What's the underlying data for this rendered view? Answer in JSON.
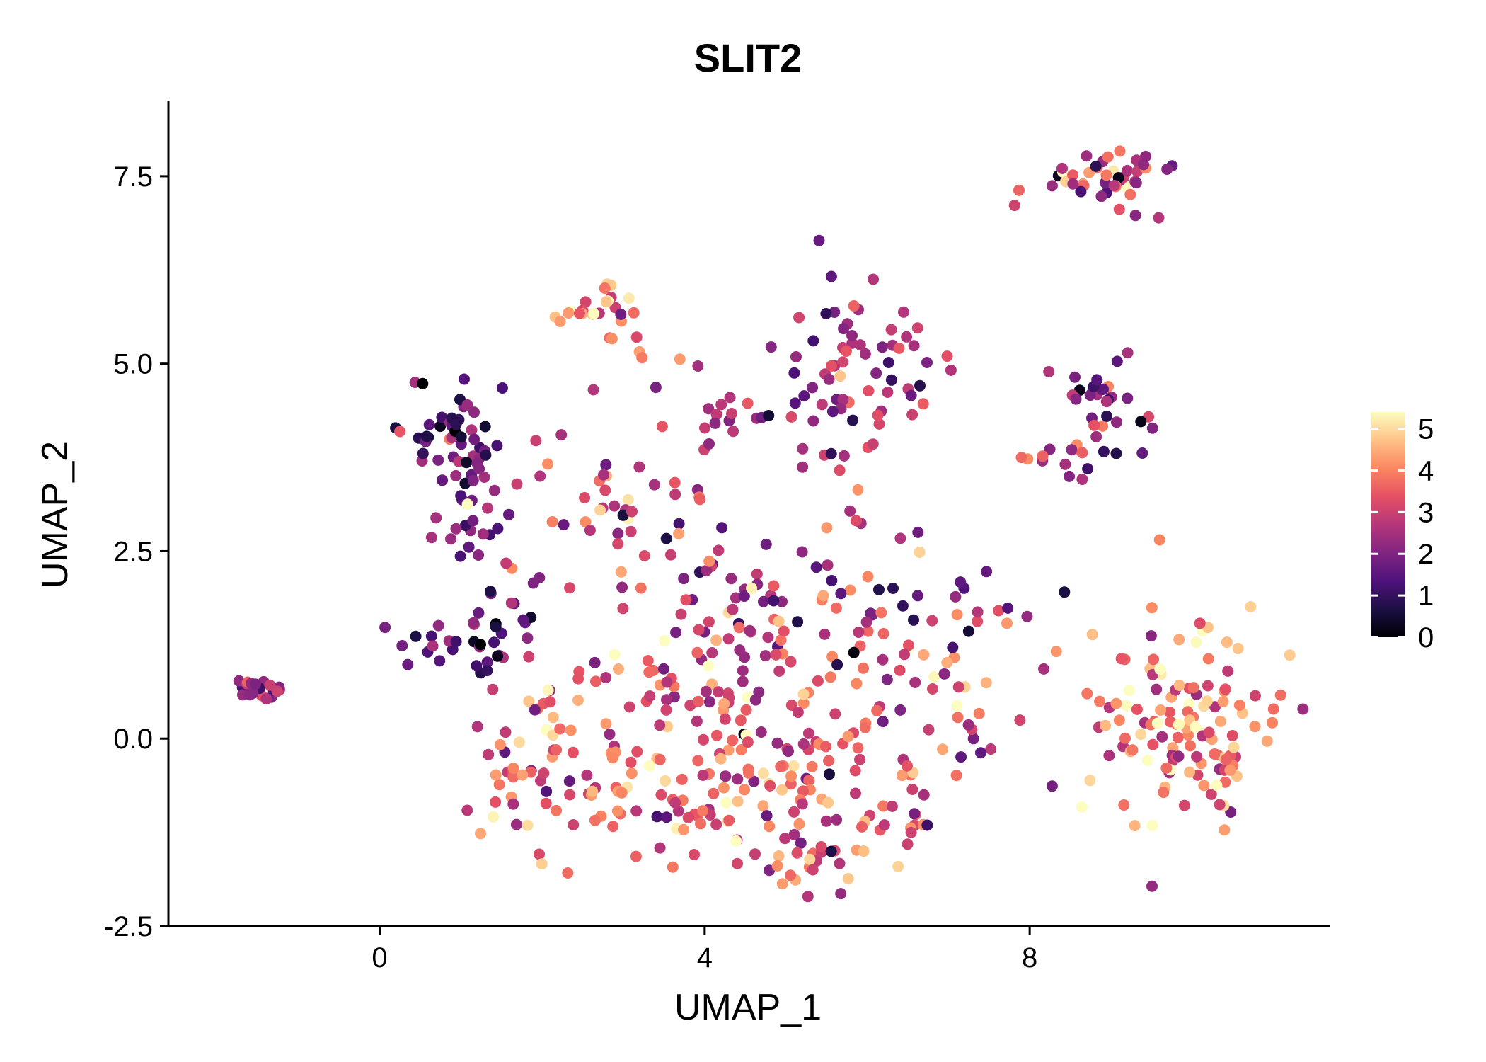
{
  "chart_data": {
    "type": "scatter",
    "title": "SLIT2",
    "xlabel": "UMAP_1",
    "ylabel": "UMAP_2",
    "xlim": [
      -2.6,
      11.7
    ],
    "ylim": [
      -2.5,
      8.5
    ],
    "x_ticks": [
      0,
      4,
      8
    ],
    "x_tick_labels": [
      "0",
      "4",
      "8"
    ],
    "y_ticks": [
      -2.5,
      0.0,
      2.5,
      5.0,
      7.5
    ],
    "y_tick_labels": [
      "-2.5",
      "0.0",
      "2.5",
      "5.0",
      "7.5"
    ],
    "colorbar": {
      "label": "",
      "range": [
        0,
        5.4
      ],
      "ticks": [
        0,
        1,
        2,
        3,
        4,
        5
      ],
      "tick_labels": [
        "0",
        "1",
        "2",
        "3",
        "4",
        "5"
      ],
      "colormap": "magma",
      "stops": [
        "#000004",
        "#1c1044",
        "#4f127b",
        "#812581",
        "#b5367a",
        "#e55064",
        "#fb8761",
        "#fec287",
        "#fcfdbf"
      ]
    },
    "point_colors_note": "magma colormap by expression",
    "seed": 20240611,
    "clusters": [
      {
        "cx": -1.5,
        "cy": 0.65,
        "sx": 0.18,
        "sy": 0.1,
        "n": 22,
        "mean": 2.6,
        "sd": 0.7
      },
      {
        "cx": 0.55,
        "cy": 1.25,
        "sx": 0.2,
        "sy": 0.12,
        "n": 10,
        "mean": 1.3,
        "sd": 0.6
      },
      {
        "cx": 0.9,
        "cy": 4.0,
        "sx": 0.3,
        "sy": 0.4,
        "n": 45,
        "mean": 1.6,
        "sd": 0.9
      },
      {
        "cx": 1.3,
        "cy": 3.0,
        "sx": 0.25,
        "sy": 0.45,
        "n": 25,
        "mean": 1.7,
        "sd": 0.8
      },
      {
        "cx": 1.5,
        "cy": 1.4,
        "sx": 0.3,
        "sy": 0.4,
        "n": 30,
        "mean": 1.5,
        "sd": 1.0
      },
      {
        "cx": 2.8,
        "cy": 5.7,
        "sx": 0.3,
        "sy": 0.25,
        "n": 28,
        "mean": 3.8,
        "sd": 0.9
      },
      {
        "cx": 3.0,
        "cy": 3.4,
        "sx": 0.8,
        "sy": 0.8,
        "n": 45,
        "mean": 3.2,
        "sd": 1.0
      },
      {
        "cx": 4.3,
        "cy": 4.3,
        "sx": 0.3,
        "sy": 0.2,
        "n": 14,
        "mean": 2.7,
        "sd": 0.9
      },
      {
        "cx": 6.0,
        "cy": 5.1,
        "sx": 0.55,
        "sy": 0.55,
        "n": 55,
        "mean": 2.4,
        "sd": 0.9
      },
      {
        "cx": 5.7,
        "cy": 3.7,
        "sx": 0.45,
        "sy": 0.6,
        "n": 22,
        "mean": 2.6,
        "sd": 0.9
      },
      {
        "cx": 4.8,
        "cy": 1.7,
        "sx": 1.2,
        "sy": 0.6,
        "n": 75,
        "mean": 3.0,
        "sd": 1.1
      },
      {
        "cx": 4.8,
        "cy": 0.2,
        "sx": 1.5,
        "sy": 0.7,
        "n": 200,
        "mean": 3.4,
        "sd": 1.0
      },
      {
        "cx": 3.6,
        "cy": -1.0,
        "sx": 1.2,
        "sy": 0.4,
        "n": 60,
        "mean": 3.6,
        "sd": 1.0
      },
      {
        "cx": 5.5,
        "cy": -1.6,
        "sx": 0.6,
        "sy": 0.25,
        "n": 35,
        "mean": 3.4,
        "sd": 1.0
      },
      {
        "cx": 1.8,
        "cy": -0.3,
        "sx": 0.4,
        "sy": 0.4,
        "n": 25,
        "mean": 3.0,
        "sd": 1.1
      },
      {
        "cx": 7.0,
        "cy": 1.5,
        "sx": 0.6,
        "sy": 0.6,
        "n": 25,
        "mean": 2.3,
        "sd": 1.0
      },
      {
        "cx": 8.9,
        "cy": 7.5,
        "sx": 0.4,
        "sy": 0.25,
        "n": 45,
        "mean": 3.0,
        "sd": 1.2
      },
      {
        "cx": 8.9,
        "cy": 4.3,
        "sx": 0.3,
        "sy": 0.35,
        "n": 35,
        "mean": 2.4,
        "sd": 1.0
      },
      {
        "cx": 8.2,
        "cy": 3.8,
        "sx": 0.2,
        "sy": 0.15,
        "n": 9,
        "mean": 3.5,
        "sd": 0.9
      },
      {
        "cx": 9.8,
        "cy": 0.3,
        "sx": 0.6,
        "sy": 0.75,
        "n": 110,
        "mean": 3.9,
        "sd": 1.0
      },
      {
        "cx": 10.2,
        "cy": -0.3,
        "sx": 0.35,
        "sy": 0.3,
        "n": 20,
        "mean": 4.2,
        "sd": 0.8
      }
    ]
  }
}
